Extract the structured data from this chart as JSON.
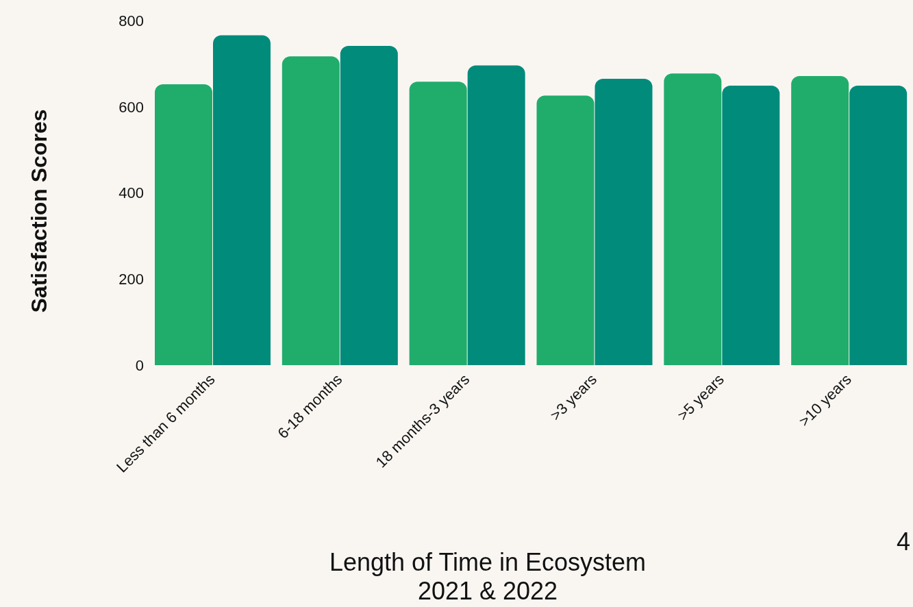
{
  "chart_data": {
    "type": "bar",
    "xlabel": "Length of Time in Ecosystem 2021 & 2022",
    "ylabel": "Satisfaction Scores",
    "categories": [
      "Less than 6 months",
      "6-18 months",
      "18 months-3 years",
      ">3 years",
      ">5 years",
      ">10 years"
    ],
    "series": [
      {
        "color": "#20ad6b",
        "values": [
          652,
          717,
          658,
          626,
          677,
          671
        ]
      },
      {
        "color": "#008b7b",
        "values": [
          766,
          741,
          696,
          665,
          649,
          649
        ]
      }
    ],
    "ylim": [
      0,
      800
    ],
    "yticks": [
      0,
      200,
      400,
      600,
      800
    ],
    "annotations": [
      "4"
    ]
  }
}
